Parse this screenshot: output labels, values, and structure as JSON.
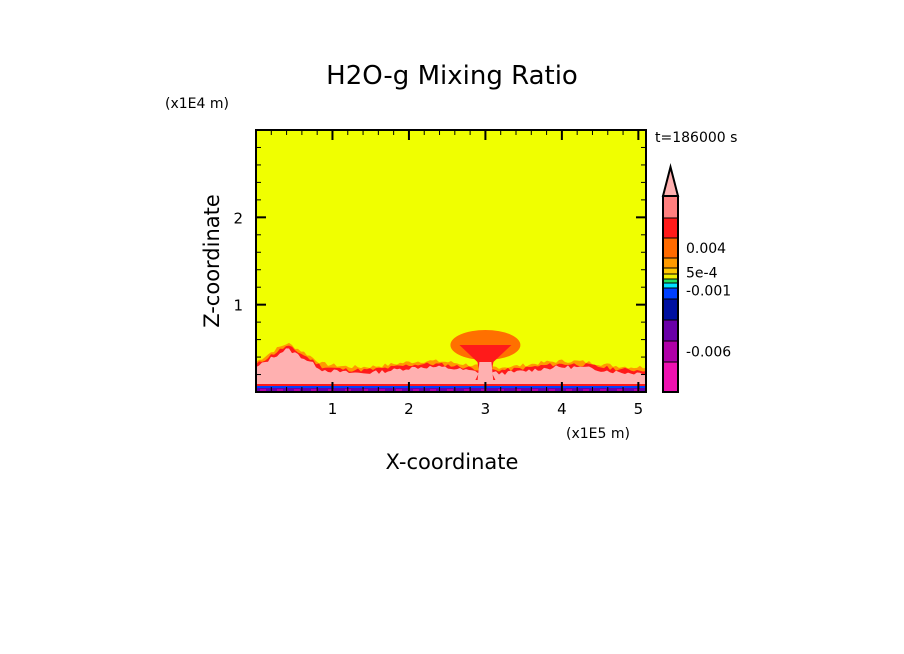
{
  "chart_data": {
    "type": "heatmap",
    "title": "H2O-g Mixing Ratio",
    "xlabel": "X-coordinate",
    "ylabel": "Z-coordinate",
    "x_unit": "(x1E5 m)",
    "y_unit": "(x1E4 m)",
    "time_label": "t=186000 s",
    "xlim": [
      0,
      5.1
    ],
    "ylim": [
      0,
      3.0
    ],
    "x_ticks": [
      1,
      2,
      3,
      4,
      5
    ],
    "x_tick_labels": [
      "1",
      "2",
      "3",
      "4",
      "5"
    ],
    "y_ticks": [
      1,
      2
    ],
    "y_tick_labels": [
      "1",
      "2"
    ],
    "colorbar": {
      "colors": [
        "#ff7f7f",
        "#ff1a1a",
        "#ff6a00",
        "#ff9a00",
        "#ffc800",
        "#f0f000",
        "#20e060",
        "#00e0ff",
        "#0040ff",
        "#0010a0",
        "#6a00a8",
        "#b000a8",
        "#ee10b0"
      ],
      "extend_color": "#ffb0b0",
      "labels": [
        {
          "text": "0.004",
          "index": 2
        },
        {
          "text": "5e-4",
          "index": 5
        },
        {
          "text": "-0.001",
          "index": 7
        },
        {
          "text": "-0.006",
          "index": 11
        }
      ]
    },
    "regions": {
      "background_color": "#f0ff00",
      "boundary_layer_color": "#ffb0b0",
      "plume_outer_color": "#ff7000",
      "plume_core_color": "#ff1a1a",
      "surface_colors": [
        "#6a00a8",
        "#0040ff",
        "#b000a8"
      ]
    }
  }
}
